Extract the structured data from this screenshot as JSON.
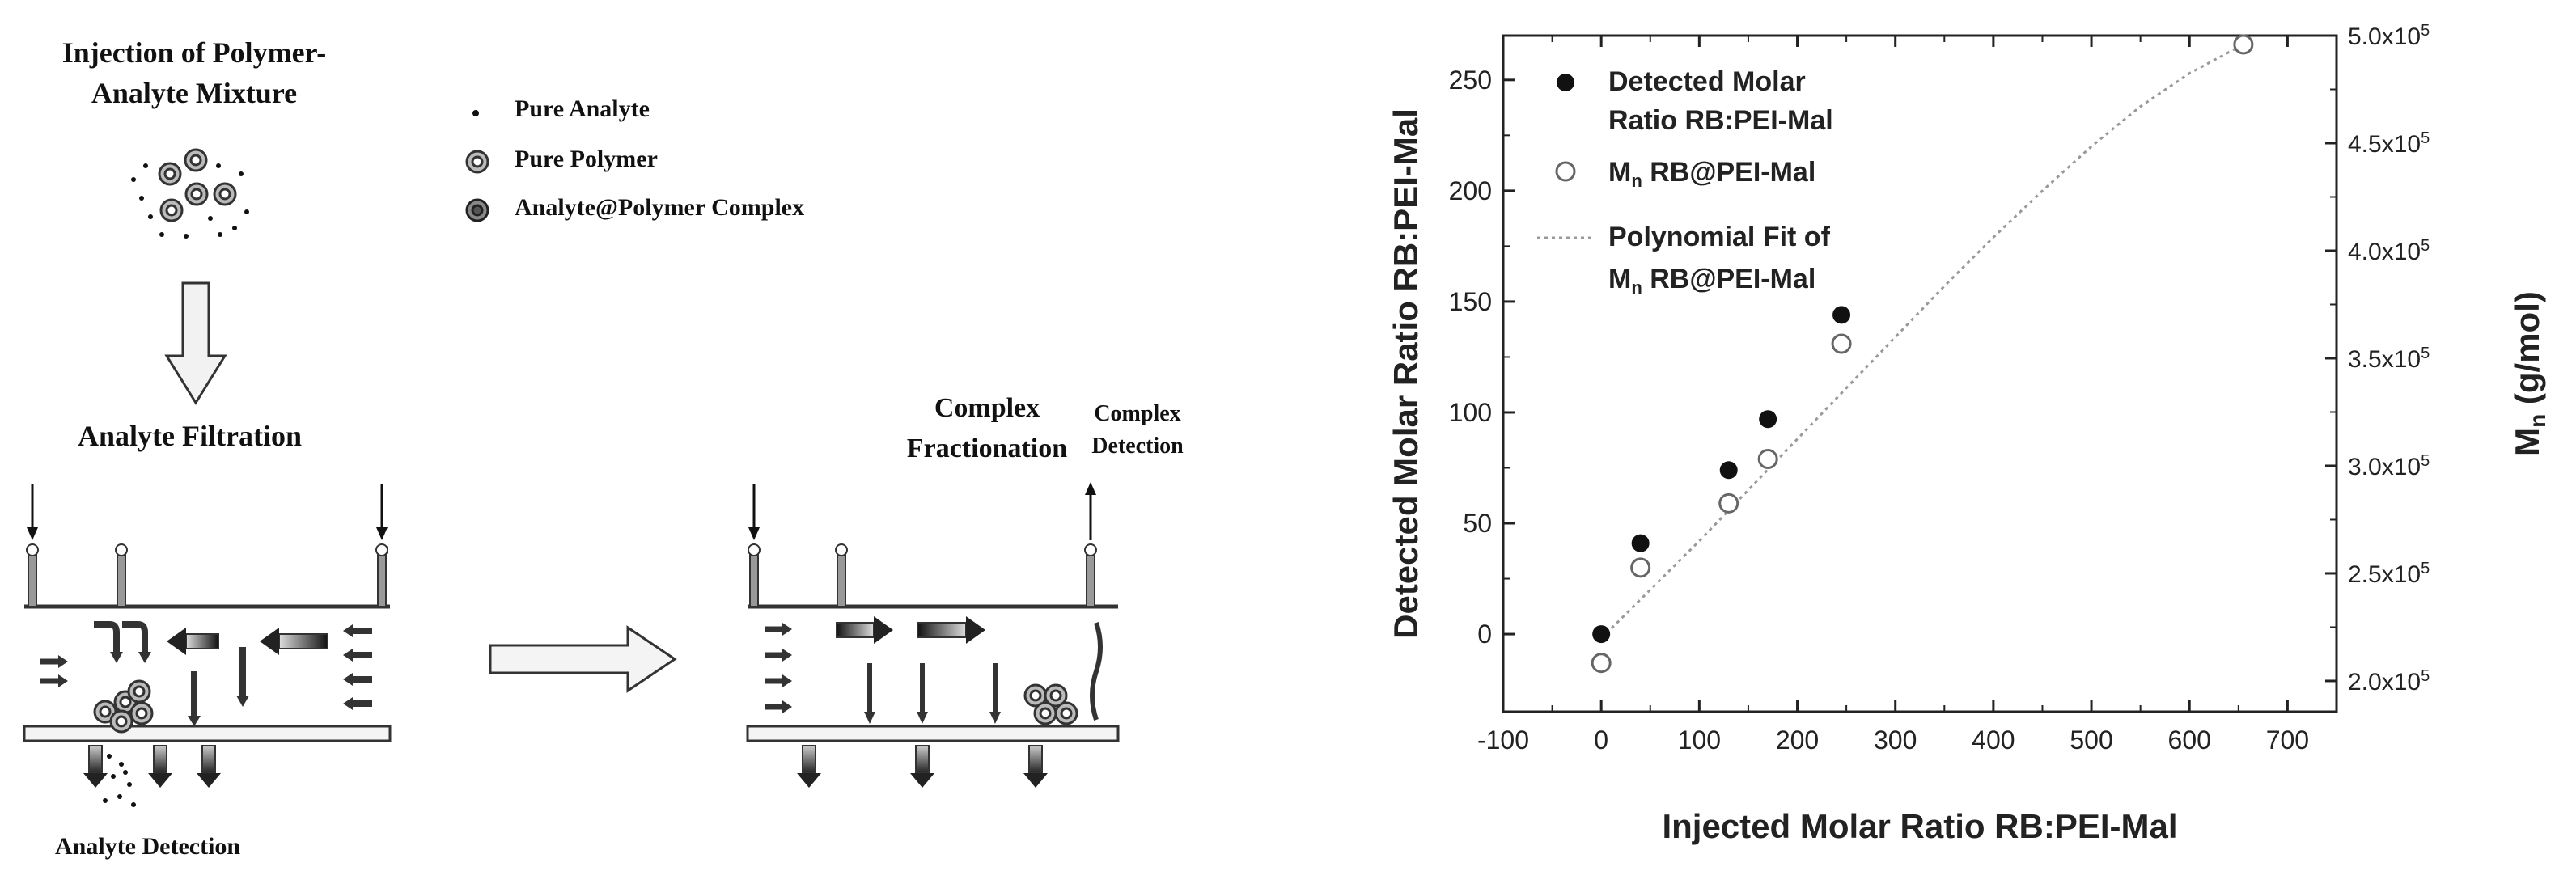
{
  "schematic": {
    "injection_title_line1": "Injection of Polymer-",
    "injection_title_line2": "Analyte Mixture",
    "legend": {
      "pure_analyte": "Pure Analyte",
      "pure_polymer": "Pure Polymer",
      "complex": "Analyte@Polymer Complex"
    },
    "analyte_filtration": "Analyte Filtration",
    "analyte_detection": "Analyte Detection",
    "complex_fractionation_line1": "Complex",
    "complex_fractionation_line2": "Fractionation",
    "complex_detection_line1": "Complex",
    "complex_detection_line2": "Detection"
  },
  "chart_data": {
    "type": "scatter",
    "title": "",
    "xlabel": "Injected Molar Ratio RB:PEI-Mal",
    "ylabel_left": "Detected Molar Ratio RB:PEI-Mal",
    "ylabel_right_main": "M",
    "ylabel_right_sub": "n",
    "ylabel_right_rest": " (g/mol)",
    "xlim": [
      -100,
      750
    ],
    "ylim_left": [
      -35,
      270
    ],
    "ylim_right": [
      1.857,
      5.0
    ],
    "x_ticks": [
      -100,
      0,
      100,
      200,
      300,
      400,
      500,
      600,
      700
    ],
    "y_left_ticks": [
      0,
      50,
      100,
      150,
      200,
      250
    ],
    "y_right_ticks": [
      {
        "value": 2.0,
        "label": "2.0x10",
        "exp": "5"
      },
      {
        "value": 2.5,
        "label": "2.5x10",
        "exp": "5"
      },
      {
        "value": 3.0,
        "label": "3.0x10",
        "exp": "5"
      },
      {
        "value": 3.5,
        "label": "3.5x10",
        "exp": "5"
      },
      {
        "value": 4.0,
        "label": "4.0x10",
        "exp": "5"
      },
      {
        "value": 4.5,
        "label": "4.5x10",
        "exp": "5"
      },
      {
        "value": 5.0,
        "label": "5.0x10",
        "exp": "5"
      }
    ],
    "series": [
      {
        "name": "Detected Molar Ratio RB:PEI-Mal",
        "axis": "left",
        "marker": "filled-circle",
        "x": [
          0,
          40,
          130,
          170,
          245
        ],
        "y": [
          0,
          41,
          74,
          97,
          144
        ]
      },
      {
        "name": "Mn RB@PEI-Mal",
        "axis": "left",
        "marker": "open-circle",
        "x": [
          0,
          40,
          130,
          170,
          245,
          655
        ],
        "y": [
          -13,
          30,
          59,
          79,
          131,
          266
        ]
      },
      {
        "name": "Polynomial Fit of Mn RB@PEI-Mal",
        "axis": "left",
        "marker": "dotted-line",
        "x": [
          0,
          50,
          100,
          150,
          200,
          250,
          300,
          350,
          400,
          450,
          500,
          550,
          600,
          655
        ],
        "y": [
          -2,
          20,
          42,
          65,
          88,
          111,
          134,
          157,
          179,
          200,
          220,
          238,
          253,
          266
        ]
      }
    ],
    "legend": {
      "detected_line1": "Detected Molar",
      "detected_line2": "Ratio RB:PEI-Mal",
      "mn_main": "M",
      "mn_sub": "n",
      "mn_rest": " RB@PEI-Mal",
      "fit_line1": "Polynomial Fit of",
      "fit_line2_main": "M",
      "fit_line2_sub": "n",
      "fit_line2_rest": " RB@PEI-Mal"
    }
  }
}
